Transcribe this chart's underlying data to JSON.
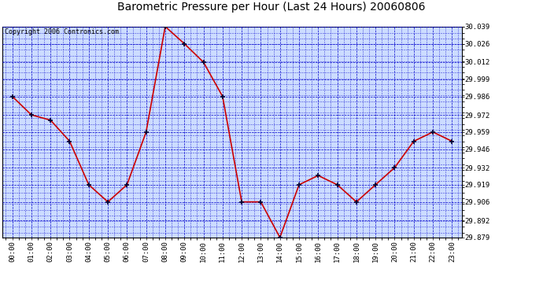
{
  "title": "Barometric Pressure per Hour (Last 24 Hours) 20060806",
  "copyright": "Copyright 2006 Contronics.com",
  "hours": [
    "00:00",
    "01:00",
    "02:00",
    "03:00",
    "04:00",
    "05:00",
    "06:00",
    "07:00",
    "08:00",
    "09:00",
    "10:00",
    "11:00",
    "12:00",
    "13:00",
    "14:00",
    "15:00",
    "16:00",
    "17:00",
    "18:00",
    "19:00",
    "20:00",
    "21:00",
    "22:00",
    "23:00"
  ],
  "values": [
    29.986,
    29.972,
    29.968,
    29.952,
    29.919,
    29.906,
    29.919,
    29.959,
    30.039,
    30.026,
    30.012,
    29.986,
    29.906,
    29.906,
    29.879,
    29.919,
    29.926,
    29.919,
    29.906,
    29.919,
    29.932,
    29.952,
    29.959,
    29.952
  ],
  "y_ticks": [
    29.879,
    29.892,
    29.906,
    29.919,
    29.932,
    29.946,
    29.959,
    29.972,
    29.986,
    29.999,
    30.012,
    30.026,
    30.039
  ],
  "y_min": 29.879,
  "y_max": 30.039,
  "line_color": "#cc0000",
  "marker_color": "#000033",
  "bg_color": "#ccdcff",
  "grid_color": "#0000cc",
  "title_color": "#000000",
  "border_color": "#000000",
  "title_fontsize": 10,
  "copyright_fontsize": 6,
  "tick_fontsize": 6.5,
  "fig_width": 6.9,
  "fig_height": 3.75,
  "fig_dpi": 100
}
